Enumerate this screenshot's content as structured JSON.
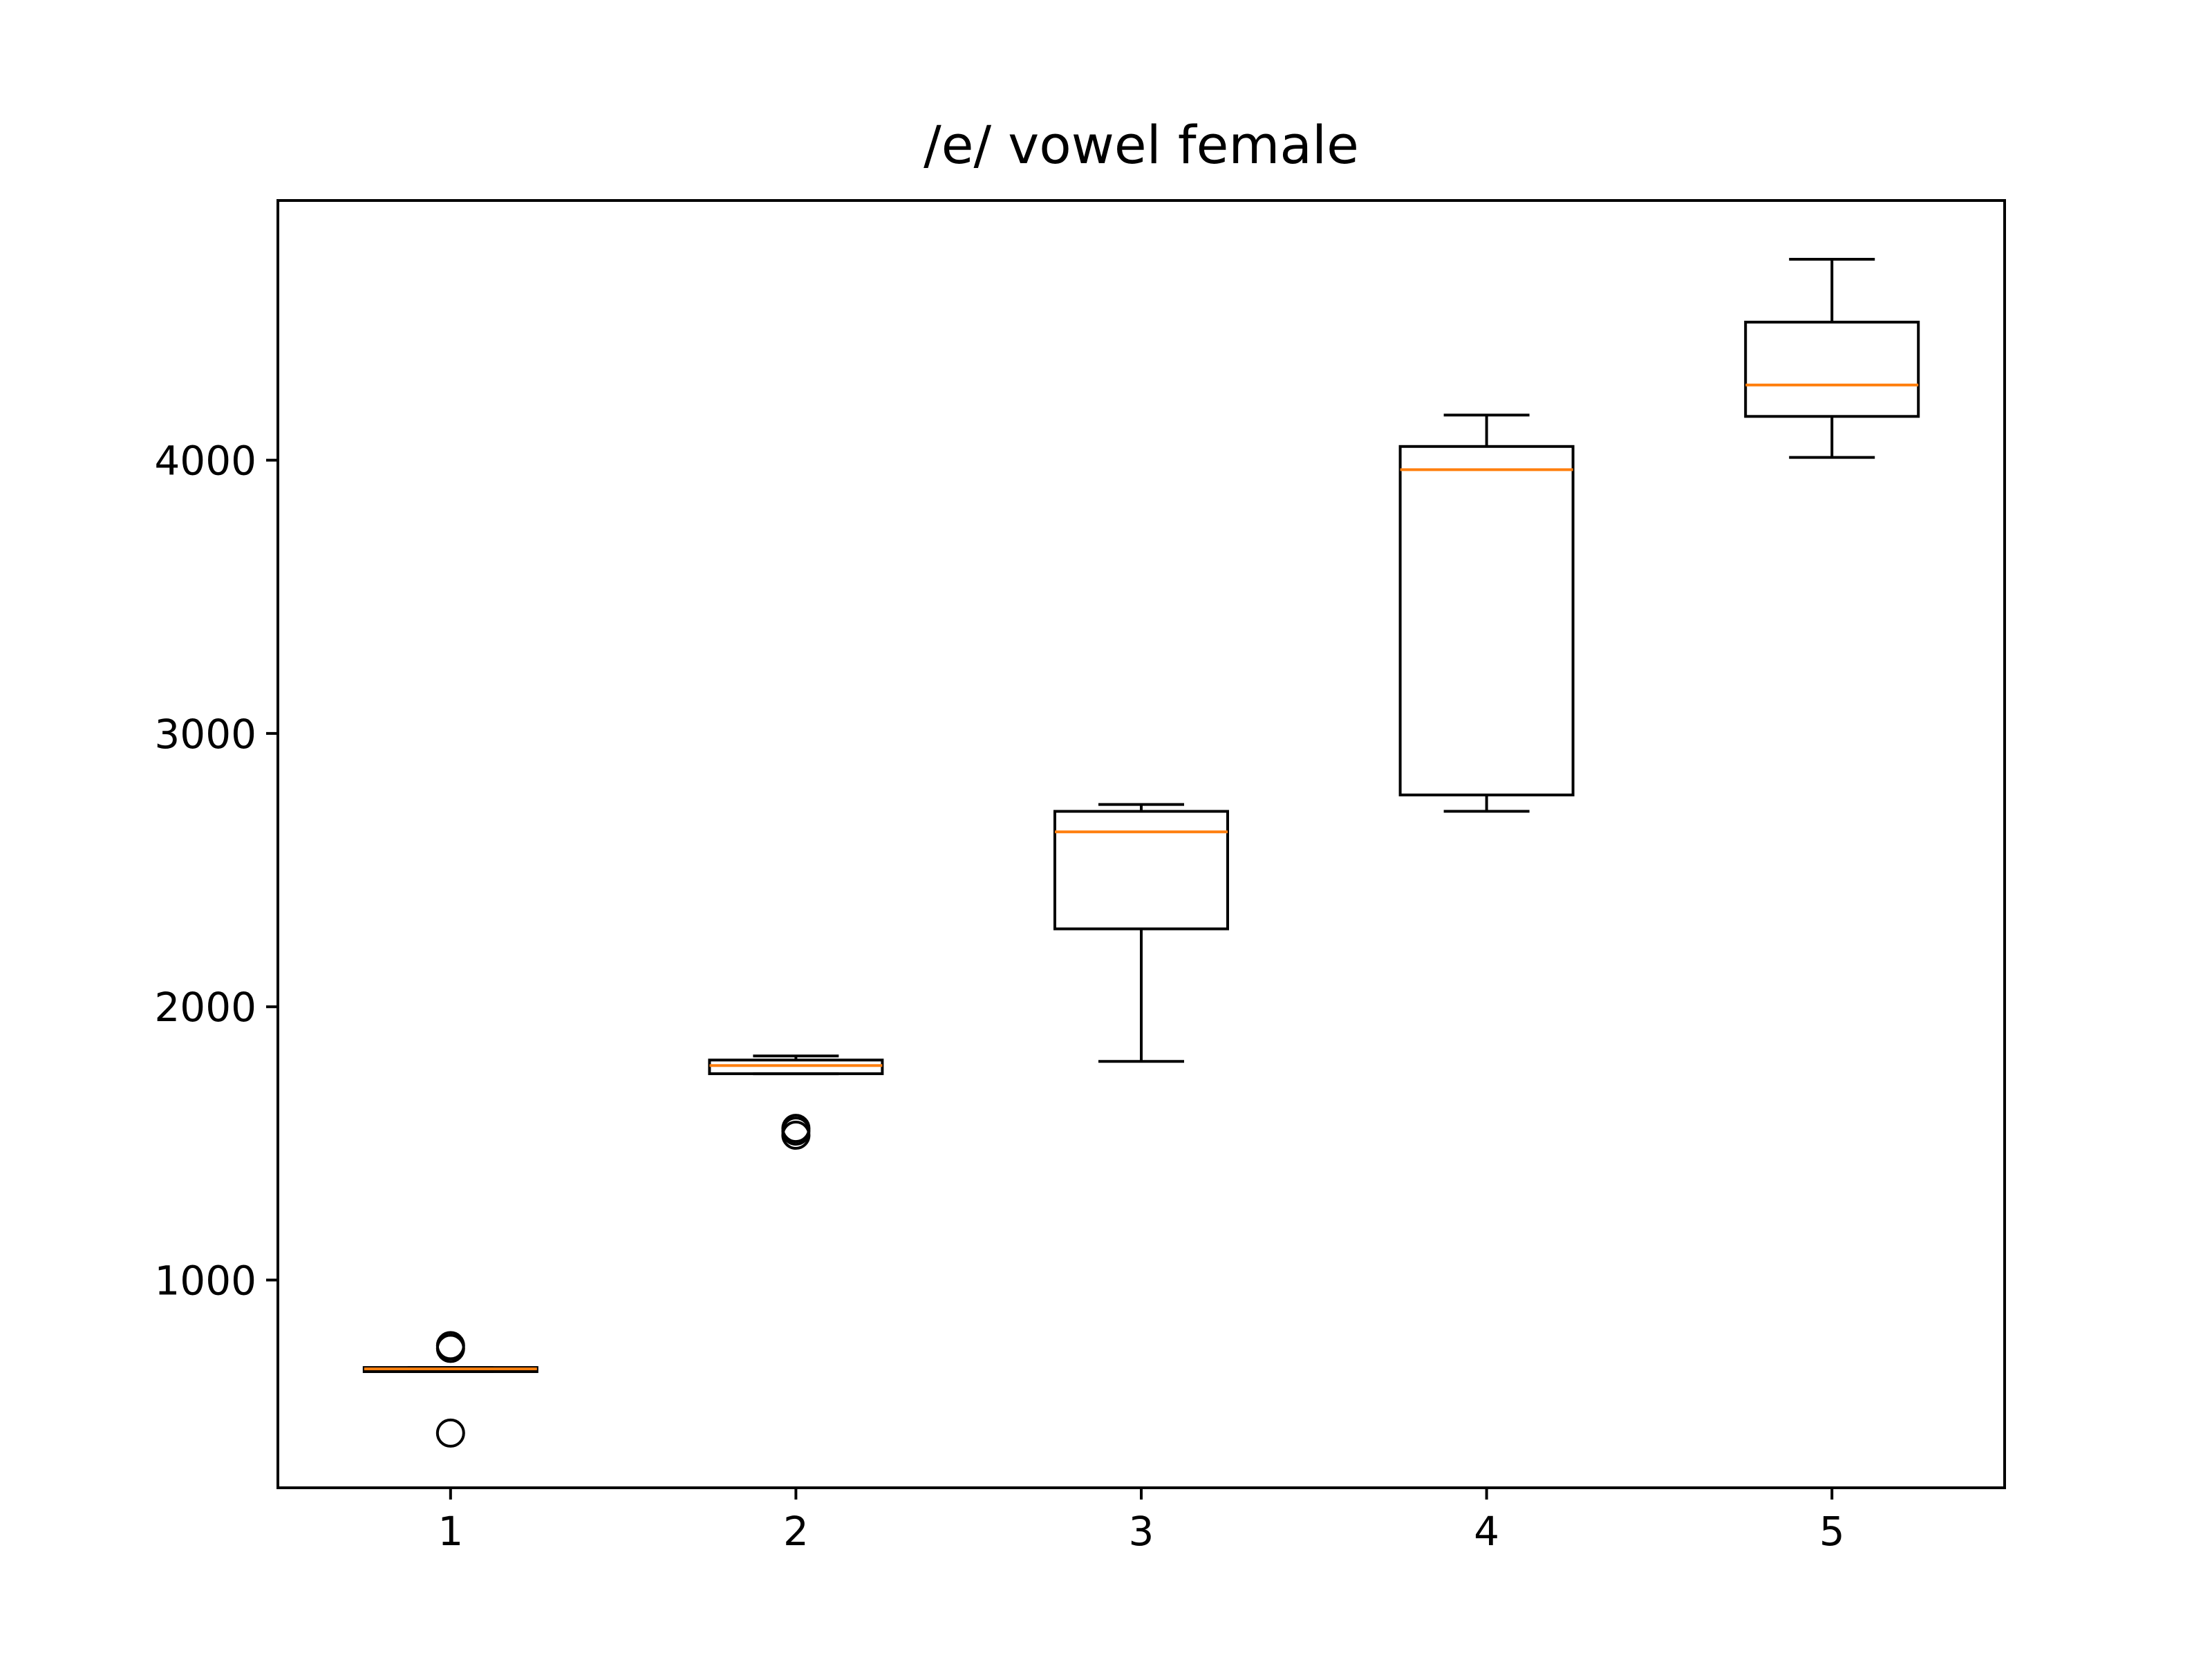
{
  "chart_data": {
    "type": "box",
    "title": "/e/ vowel female",
    "xlabel": "",
    "ylabel": "",
    "categories": [
      "1",
      "2",
      "3",
      "4",
      "5"
    ],
    "yticks": [
      1000,
      2000,
      3000,
      4000
    ],
    "ylim": [
      240,
      4950
    ],
    "xlim": [
      0.5,
      5.5
    ],
    "grid": false,
    "legend": "none",
    "colors": {
      "box": "#000000",
      "median": "#ff7f0e",
      "outlier": "#000000"
    },
    "boxes": [
      {
        "category": "1",
        "whisker_low": 665,
        "q1": 665,
        "median": 675,
        "q3": 680,
        "whisker_high": 680,
        "outliers": [
          440,
          750,
          760
        ]
      },
      {
        "category": "2",
        "whisker_low": 1755,
        "q1": 1755,
        "median": 1785,
        "q3": 1805,
        "whisker_high": 1820,
        "outliers": [
          1530,
          1545,
          1555
        ]
      },
      {
        "category": "3",
        "whisker_low": 1800,
        "q1": 2285,
        "median": 2640,
        "q3": 2715,
        "whisker_high": 2740,
        "outliers": []
      },
      {
        "category": "4",
        "whisker_low": 2715,
        "q1": 2775,
        "median": 3965,
        "q3": 4050,
        "whisker_high": 4165,
        "outliers": []
      },
      {
        "category": "5",
        "whisker_low": 4010,
        "q1": 4160,
        "median": 4275,
        "q3": 4505,
        "whisker_high": 4735,
        "outliers": []
      }
    ]
  }
}
